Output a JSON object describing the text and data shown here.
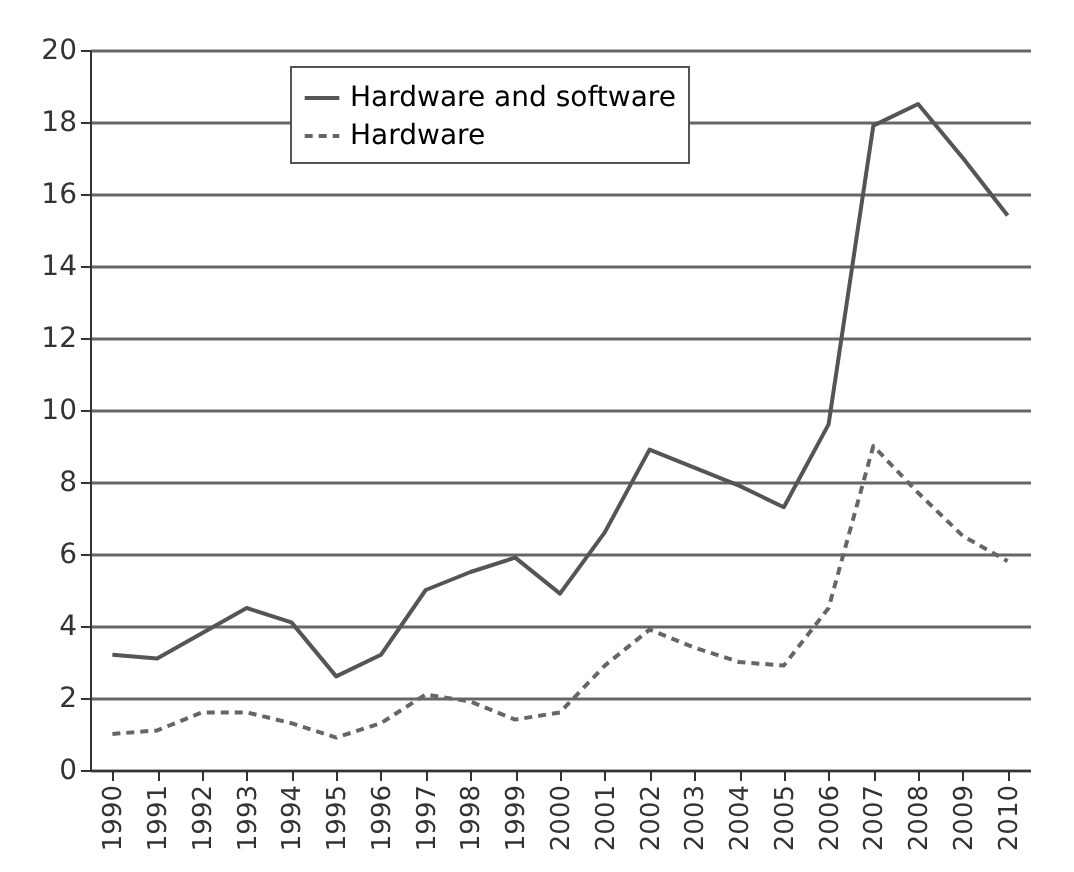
{
  "chart_data": {
    "type": "line",
    "categories": [
      "1990",
      "1991",
      "1992",
      "1993",
      "1994",
      "1995",
      "1996",
      "1997",
      "1998",
      "1999",
      "2000",
      "2001",
      "2002",
      "2003",
      "2004",
      "2005",
      "2006",
      "2007",
      "2008",
      "2009",
      "2010"
    ],
    "series": [
      {
        "name": "Hardware and software",
        "color": "#555555",
        "line_style": "solid",
        "values": [
          3.2,
          3.1,
          3.8,
          4.5,
          4.1,
          2.6,
          3.2,
          5.0,
          5.5,
          5.9,
          4.9,
          6.6,
          8.9,
          8.4,
          7.9,
          7.3,
          9.6,
          17.9,
          18.5,
          17.0,
          15.4
        ]
      },
      {
        "name": "Hardware",
        "color": "#666666",
        "line_style": "dashed",
        "values": [
          1.0,
          1.1,
          1.6,
          1.6,
          1.3,
          0.9,
          1.3,
          2.1,
          1.9,
          1.4,
          1.6,
          2.9,
          3.9,
          3.4,
          3.0,
          2.9,
          4.5,
          9.0,
          7.7,
          6.5,
          5.8
        ]
      }
    ],
    "ylim": [
      0,
      20
    ],
    "yticks": [
      0,
      2,
      4,
      6,
      8,
      10,
      12,
      14,
      16,
      18,
      20
    ],
    "grid": "y",
    "legend": "top left",
    "marker": "none"
  }
}
